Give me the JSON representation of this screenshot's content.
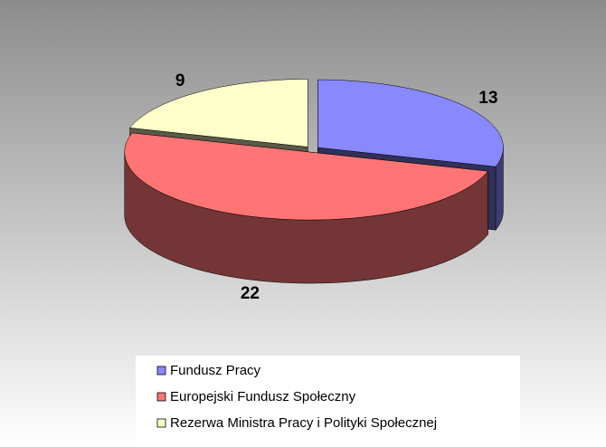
{
  "chart_data": {
    "type": "pie",
    "categories": [
      "Fundusz Pracy",
      "Europejski Fundusz Społeczny",
      "Rezerwa Ministra Pracy i Polityki Społecznej"
    ],
    "values": [
      13,
      22,
      9
    ],
    "colors": [
      "#8888ff",
      "#ff7575",
      "#ffffcc"
    ],
    "legend": "bottom"
  }
}
